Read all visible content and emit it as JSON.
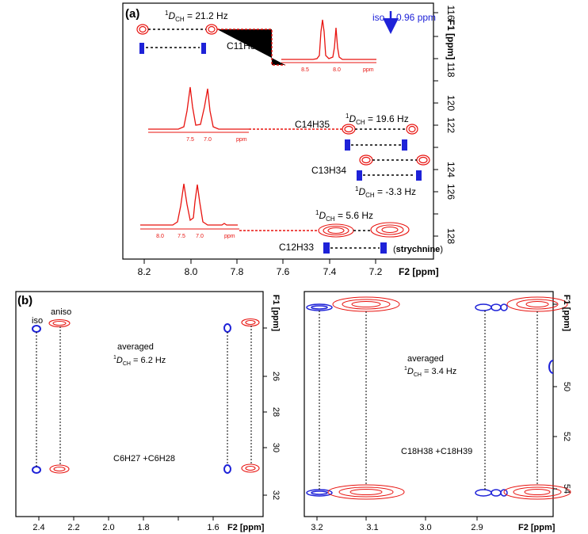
{
  "panel_a": {
    "label": "(a)",
    "iso_text": "iso",
    "iso_shift": "0.96 ppm",
    "x_axis": {
      "label": "F2 [ppm]",
      "ticks": [
        "8.2",
        "8.0",
        "7.8",
        "7.6",
        "7.4",
        "7.2"
      ]
    },
    "y_axis": {
      "label": "F1 [ppm]",
      "ticks": [
        "116",
        "118",
        "120",
        "122",
        "124",
        "126",
        "128"
      ]
    },
    "couplings": [
      {
        "group": "C11H32",
        "sup": "1",
        "text": "D",
        "sub": "CH",
        "value": " = 21.2 Hz"
      },
      {
        "group": "C14H35",
        "sup": "1",
        "text": "D",
        "sub": "CH",
        "value": " = 19.6 Hz"
      },
      {
        "group": "C13H34",
        "sup": "1",
        "text": "D",
        "sub": "CH",
        "value": " = -3.3 Hz"
      },
      {
        "group": "C12H33",
        "sup": "1",
        "text": "D",
        "sub": "CH",
        "value": " = 5.6 Hz"
      }
    ],
    "compound": "strychnine",
    "insets": [
      {
        "ticks": [
          "8.5",
          "8.0"
        ],
        "unit": "ppm"
      },
      {
        "ticks": [
          "7.5",
          "7.0"
        ],
        "unit": "ppm"
      },
      {
        "ticks": [
          "8.0",
          "7.5",
          "7.0"
        ],
        "unit": "ppm"
      }
    ]
  },
  "panel_b_left": {
    "label": "(b)",
    "iso": "iso",
    "aniso": "aniso",
    "averaged": "averaged",
    "coupling": {
      "sup": "1",
      "text": "D",
      "sub": "CH",
      "value": " = 6.2 Hz"
    },
    "group": "C6H27 +C6H28",
    "x_axis": {
      "label": "F2 [ppm]",
      "ticks": [
        "2.4",
        "2.2",
        "2.0",
        "1.8",
        "1.6"
      ]
    },
    "y_axis": {
      "label": "F1 [ppm]",
      "ticks": [
        "26",
        "28",
        "30",
        "32"
      ]
    }
  },
  "panel_b_right": {
    "averaged": "averaged",
    "coupling": {
      "sup": "1",
      "text": "D",
      "sub": "CH",
      "value": " = 3.4 Hz"
    },
    "group": "C18H38 +C18H39",
    "x_axis": {
      "label": "F2 [ppm]",
      "ticks": [
        "3.2",
        "3.1",
        "3.0",
        "2.9"
      ]
    },
    "y_axis": {
      "label": "F1 [ppm]",
      "ticks": [
        "50",
        "52",
        "54"
      ]
    }
  },
  "colors": {
    "aniso": "#e8130f",
    "iso": "#1e22d8"
  }
}
